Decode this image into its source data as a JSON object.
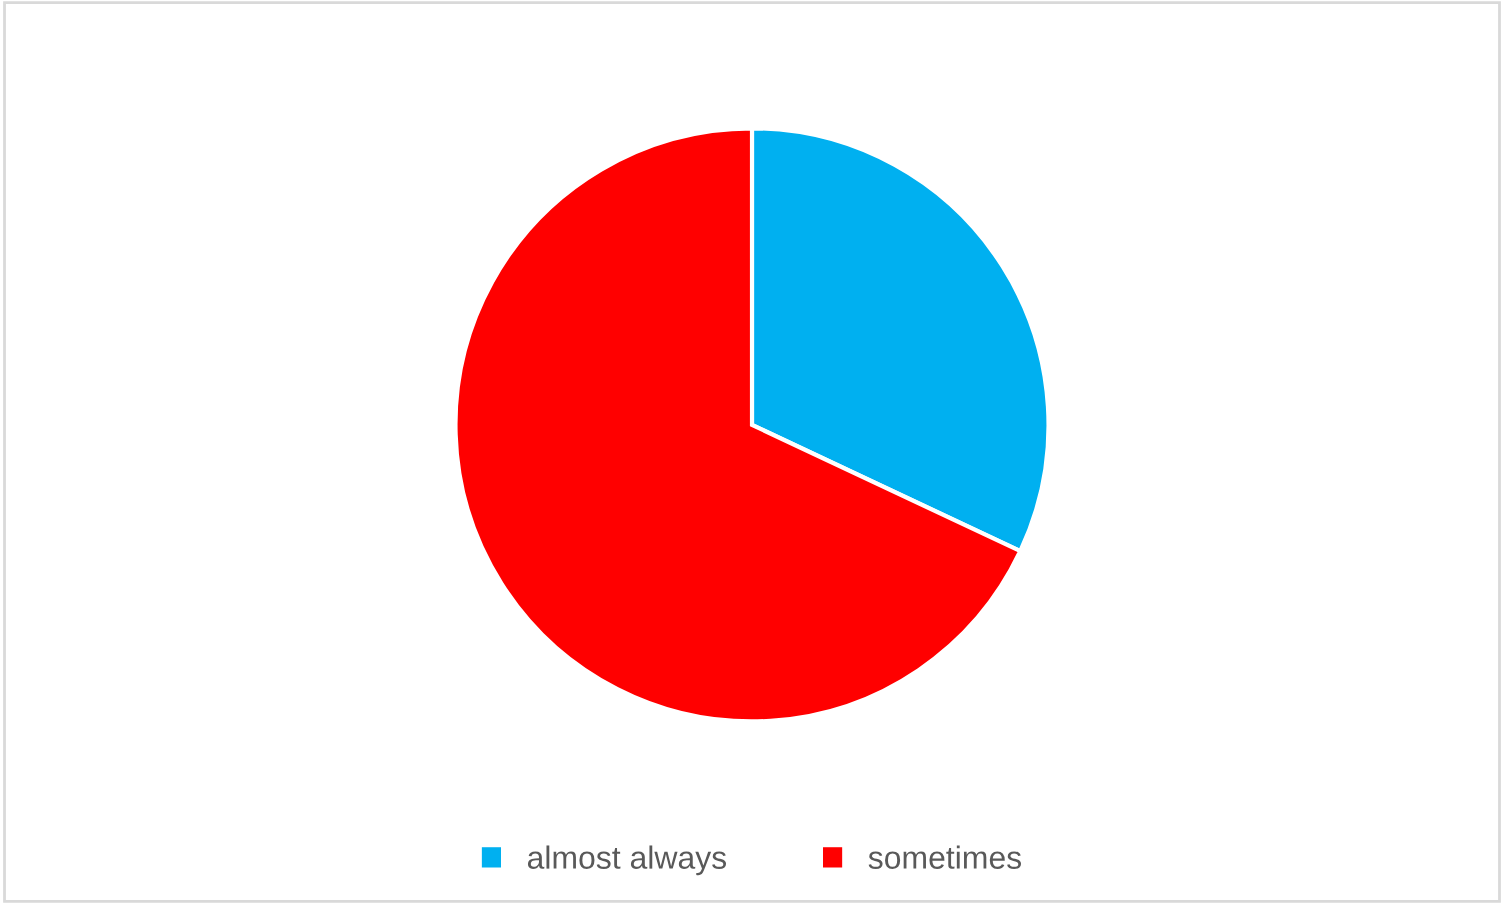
{
  "chart_data": {
    "type": "pie",
    "categories": [
      "almost always",
      "sometimes"
    ],
    "values": [
      32,
      68
    ],
    "colors": [
      "#00b0f0",
      "#ff0000"
    ],
    "legend": "bottom"
  }
}
